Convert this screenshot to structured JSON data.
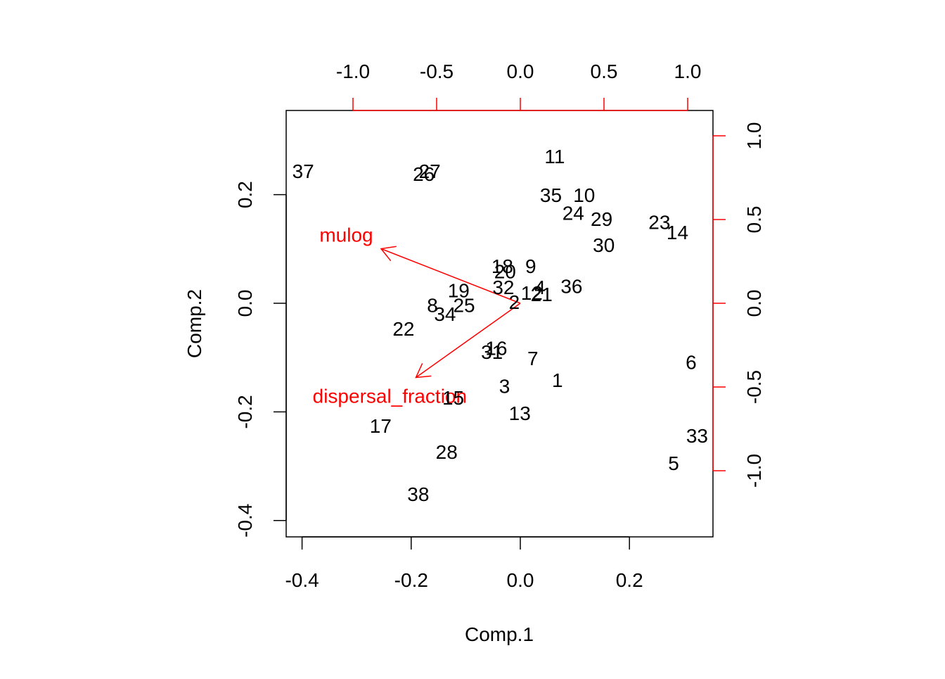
{
  "chart_data": {
    "type": "scatter",
    "subtype": "biplot",
    "title": "",
    "xlabel": "Comp.1",
    "ylabel": "Comp.2",
    "xlim": [
      -0.42,
      0.35
    ],
    "ylim": [
      -0.43,
      0.35
    ],
    "x_ticks": [
      "-0.4",
      "-0.2",
      "0.0",
      "0.2"
    ],
    "y_ticks": [
      "-0.4",
      "-0.2",
      "0.0",
      "0.2"
    ],
    "top_ticks": [
      "-1.0",
      "-0.5",
      "0.0",
      "0.5",
      "1.0"
    ],
    "right_ticks": [
      "-1.0",
      "-0.5",
      "0.0",
      "0.5",
      "1.0"
    ],
    "loading_color": "#ff0000",
    "point_color": "#000000",
    "points": [
      {
        "label": "1",
        "x": 0.068,
        "y": -0.142
      },
      {
        "label": "2",
        "x": -0.011,
        "y": 0.002
      },
      {
        "label": "3",
        "x": -0.029,
        "y": -0.153
      },
      {
        "label": "4",
        "x": 0.036,
        "y": 0.029
      },
      {
        "label": "5",
        "x": 0.281,
        "y": -0.295
      },
      {
        "label": "6",
        "x": 0.313,
        "y": -0.109
      },
      {
        "label": "7",
        "x": 0.023,
        "y": -0.102
      },
      {
        "label": "8",
        "x": -0.161,
        "y": -0.004
      },
      {
        "label": "9",
        "x": 0.019,
        "y": 0.068
      },
      {
        "label": "10",
        "x": 0.117,
        "y": 0.199
      },
      {
        "label": "11",
        "x": 0.063,
        "y": 0.27
      },
      {
        "label": "12",
        "x": 0.021,
        "y": 0.019
      },
      {
        "label": "13",
        "x": -0.001,
        "y": -0.203
      },
      {
        "label": "14",
        "x": 0.288,
        "y": 0.13
      },
      {
        "label": "15",
        "x": -0.123,
        "y": -0.174
      },
      {
        "label": "16",
        "x": -0.044,
        "y": -0.083
      },
      {
        "label": "17",
        "x": -0.256,
        "y": -0.226
      },
      {
        "label": "18",
        "x": -0.033,
        "y": 0.068
      },
      {
        "label": "19",
        "x": -0.113,
        "y": 0.023
      },
      {
        "label": "20",
        "x": -0.028,
        "y": 0.058
      },
      {
        "label": "21",
        "x": 0.039,
        "y": 0.016
      },
      {
        "label": "22",
        "x": -0.214,
        "y": -0.047
      },
      {
        "label": "23",
        "x": 0.255,
        "y": 0.149
      },
      {
        "label": "24",
        "x": 0.097,
        "y": 0.166
      },
      {
        "label": "25",
        "x": -0.103,
        "y": -0.004
      },
      {
        "label": "26",
        "x": -0.177,
        "y": 0.238
      },
      {
        "label": "27",
        "x": -0.166,
        "y": 0.243
      },
      {
        "label": "28",
        "x": -0.135,
        "y": -0.274
      },
      {
        "label": "29",
        "x": 0.149,
        "y": 0.155
      },
      {
        "label": "30",
        "x": 0.153,
        "y": 0.107
      },
      {
        "label": "31",
        "x": -0.052,
        "y": -0.09
      },
      {
        "label": "32",
        "x": -0.031,
        "y": 0.029
      },
      {
        "label": "33",
        "x": 0.324,
        "y": -0.244
      },
      {
        "label": "34",
        "x": -0.138,
        "y": -0.02
      },
      {
        "label": "35",
        "x": 0.056,
        "y": 0.199
      },
      {
        "label": "36",
        "x": 0.094,
        "y": 0.031
      },
      {
        "label": "37",
        "x": -0.398,
        "y": 0.243
      },
      {
        "label": "38",
        "x": -0.187,
        "y": -0.352
      }
    ],
    "loadings": [
      {
        "label": "mulog",
        "x": -1.04,
        "y": 0.407
      },
      {
        "label": "dispersal_fraction",
        "x": -0.78,
        "y": -0.554
      }
    ]
  }
}
